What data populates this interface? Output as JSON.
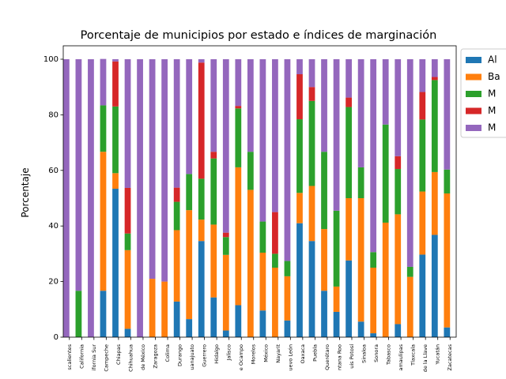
{
  "chart_data": {
    "type": "stacked-bar",
    "title": "Porcentaje de municipios por estado e índices de marginación",
    "y_label": "Porcentaje",
    "categories": [
      "scalientes",
      "California",
      "ifornia Sur",
      "Campeche",
      "Chiapas",
      "Chihuahua",
      "de México",
      "Zaragoza",
      "Colima",
      "Durango",
      "uanajuato",
      "Guerrero",
      "Hidalgo",
      "Jalisco",
      "e Ocampo",
      "Morelos",
      "México",
      "Nayarit",
      "uevo León",
      "Oaxaca",
      "Puebla",
      "Querétaro",
      "ntana Roo",
      "uis Potosí",
      "Sinaloa",
      "Sonora",
      "Tabasco",
      "amaulipas",
      "Tlaxcala",
      "de la Llave",
      "Yucatán",
      "Zacatecas"
    ],
    "series": [
      {
        "name": "Al",
        "color": "#1f77b4",
        "values": [
          0,
          0,
          0,
          16.7,
          53.4,
          3,
          0,
          0,
          0,
          12.8,
          6.5,
          34.6,
          14.3,
          2.4,
          11.5,
          0,
          9.6,
          0,
          6,
          41,
          34.6,
          16.7,
          9.1,
          27.6,
          5.6,
          1.4,
          0,
          4.7,
          0,
          29.7,
          36.8,
          3.5
        ]
      },
      {
        "name": "Ba",
        "color": "#ff7f0e",
        "values": [
          0,
          0,
          0,
          50,
          5.6,
          28.3,
          0,
          21,
          20,
          25.7,
          39.2,
          7.7,
          26.2,
          27.2,
          49.6,
          53,
          20.8,
          25,
          15.9,
          10.9,
          19.8,
          22.2,
          9.1,
          22.4,
          44.4,
          23.6,
          41.2,
          39.5,
          21.7,
          22.7,
          22.6,
          48.2
        ]
      },
      {
        "name": "M",
        "color": "#2ca02c",
        "values": [
          0,
          16.7,
          0,
          16.7,
          24,
          6,
          0,
          0,
          0,
          10.2,
          13,
          14.7,
          23.8,
          6.4,
          21.2,
          13.7,
          11.2,
          5,
          5.5,
          26.5,
          30.6,
          27.8,
          27.3,
          32.8,
          11.1,
          5.6,
          35.3,
          16.3,
          3.6,
          25.9,
          33.1,
          8.6
        ]
      },
      {
        "name": "M",
        "color": "#d62728",
        "values": [
          0,
          0,
          0,
          0,
          16.2,
          16.4,
          0,
          0,
          0,
          5.1,
          0,
          41.8,
          2.4,
          1.6,
          0.9,
          0,
          0,
          15,
          0,
          16.2,
          5,
          0,
          0,
          3.4,
          0,
          0,
          0,
          4.6,
          0,
          9.9,
          1.1,
          0
        ]
      },
      {
        "name": "M",
        "color": "#9467bd",
        "values": [
          100,
          83.3,
          100,
          16.7,
          0.8,
          46.3,
          100,
          79,
          80,
          46.2,
          41.3,
          1.2,
          33.3,
          62.4,
          16.8,
          33.3,
          58.4,
          55,
          72.6,
          5.4,
          10,
          33.3,
          54.5,
          13.8,
          38.9,
          69.4,
          23.5,
          34.9,
          74.7,
          11.8,
          6.4,
          39.7
        ]
      }
    ],
    "ylim": [
      0,
      100
    ],
    "yticks": [
      0,
      20,
      40,
      60,
      80,
      100
    ]
  }
}
